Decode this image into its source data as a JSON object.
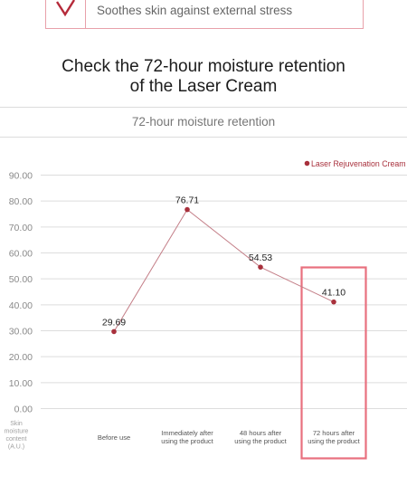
{
  "benefit": {
    "text": "Soothes skin against external stress",
    "icon": "check-icon"
  },
  "headline": {
    "line1": "Check the 72-hour moisture retention",
    "line2": "of the Laser Cream"
  },
  "chart_data": {
    "type": "line",
    "title": "72-hour moisture retention",
    "ylabel": [
      "Skin",
      "moisture",
      "content",
      "(A.U.)"
    ],
    "ylim": [
      0,
      90
    ],
    "yticks": [
      "0.00",
      "10.00",
      "20.00",
      "30.00",
      "40.00",
      "50.00",
      "60.00",
      "70.00",
      "80.00",
      "90.00"
    ],
    "categories": [
      [
        "Before use"
      ],
      [
        "Immediately after",
        "using the product"
      ],
      [
        "48 hours after",
        "using the product"
      ],
      [
        "72 hours after",
        "using the product"
      ]
    ],
    "series": [
      {
        "name": "Laser Rejuvenation Cream",
        "values": [
          29.69,
          76.71,
          54.53,
          41.1
        ],
        "labels": [
          "29.69",
          "76.71",
          "54.53",
          "41.10"
        ]
      }
    ],
    "highlight_index": 3,
    "legend": "top-right",
    "grid": true,
    "colors": {
      "series": "#a8303c",
      "line": "#c47f88",
      "highlight": "#e8707e",
      "grid": "#dddddd"
    }
  }
}
